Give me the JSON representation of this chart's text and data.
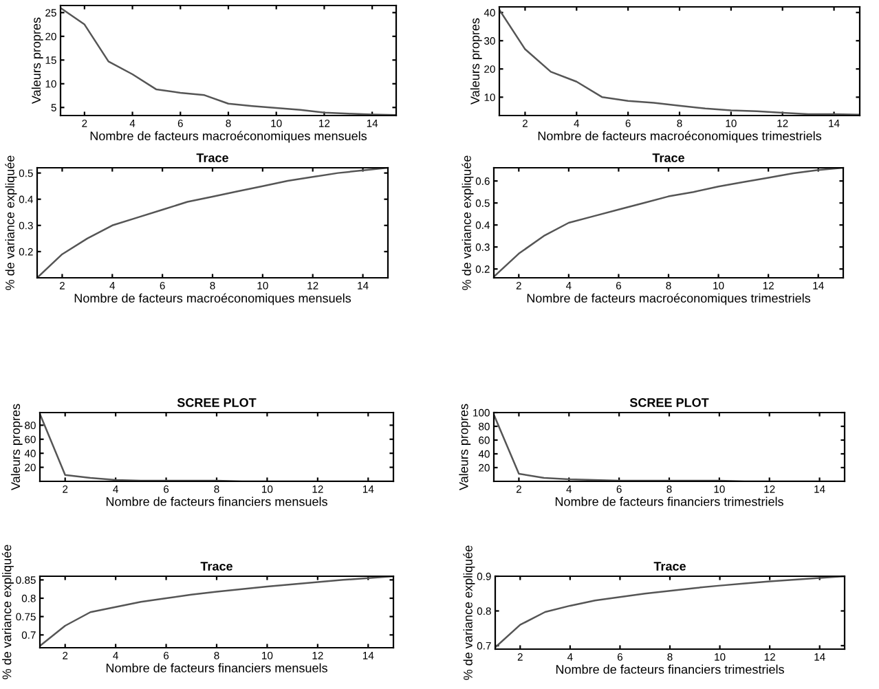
{
  "chart_data": [
    {
      "type": "line",
      "xlabel": "Nombre de facteurs macroéconomiques mensuels",
      "ylabel": "Valeurs propres",
      "x": [
        1,
        2,
        3,
        4,
        5,
        6,
        7,
        8,
        9,
        10,
        11,
        12,
        13,
        14,
        15
      ],
      "series": [
        {
          "color": "#555555",
          "values": [
            26,
            22.5,
            14.7,
            12,
            8.8,
            8.1,
            7.6,
            5.8,
            5.3,
            4.9,
            4.5,
            3.9,
            3.7,
            3.5,
            3.4
          ]
        }
      ],
      "xlim": [
        1,
        15
      ],
      "xticks": [
        2,
        4,
        6,
        8,
        10,
        12,
        14
      ],
      "ylim": [
        3.3,
        26.5
      ],
      "yticks": [
        5,
        10,
        15,
        20,
        25
      ]
    },
    {
      "type": "line",
      "xlabel": "Nombre de facteurs macroéconomiques trimestriels",
      "ylabel": "Valeurs propres",
      "x": [
        1,
        2,
        3,
        4,
        5,
        6,
        7,
        8,
        9,
        10,
        11,
        12,
        13,
        14,
        15
      ],
      "series": [
        {
          "color": "#555555",
          "values": [
            41,
            27,
            19,
            15.5,
            10,
            8.7,
            8,
            7,
            6,
            5.3,
            5,
            4.5,
            4,
            4,
            3.8
          ]
        }
      ],
      "xlim": [
        1,
        15
      ],
      "xticks": [
        2,
        4,
        6,
        8,
        10,
        12,
        14
      ],
      "ylim": [
        3.5,
        42
      ],
      "yticks": [
        10,
        20,
        30,
        40
      ]
    },
    {
      "type": "line",
      "title": "Trace",
      "xlabel": "Nombre de facteurs macroéconomiques mensuels",
      "ylabel": "% de variance expliquée",
      "x": [
        1,
        2,
        3,
        4,
        5,
        6,
        7,
        8,
        9,
        10,
        11,
        12,
        13,
        14,
        15
      ],
      "series": [
        {
          "color": "#555555",
          "values": [
            0.1,
            0.19,
            0.25,
            0.3,
            0.33,
            0.36,
            0.39,
            0.41,
            0.43,
            0.45,
            0.47,
            0.485,
            0.5,
            0.51,
            0.52
          ]
        }
      ],
      "xlim": [
        1,
        15
      ],
      "xticks": [
        2,
        4,
        6,
        8,
        10,
        12,
        14
      ],
      "ylim": [
        0.1,
        0.52
      ],
      "yticks": [
        0.2,
        0.3,
        0.4,
        0.5
      ]
    },
    {
      "type": "line",
      "title": "Trace",
      "xlabel": "Nombre de facteurs macroéconomiques trimestriels",
      "ylabel": "% de variance expliquée",
      "x": [
        1,
        2,
        3,
        4,
        5,
        6,
        7,
        8,
        9,
        10,
        11,
        12,
        13,
        14,
        15
      ],
      "series": [
        {
          "color": "#555555",
          "values": [
            0.165,
            0.27,
            0.35,
            0.41,
            0.44,
            0.47,
            0.5,
            0.53,
            0.55,
            0.575,
            0.595,
            0.615,
            0.635,
            0.65,
            0.66
          ]
        }
      ],
      "xlim": [
        1,
        15
      ],
      "xticks": [
        2,
        4,
        6,
        8,
        10,
        12,
        14
      ],
      "ylim": [
        0.16,
        0.66
      ],
      "yticks": [
        0.2,
        0.3,
        0.4,
        0.5,
        0.6
      ]
    },
    {
      "type": "line",
      "title": "SCREE PLOT",
      "xlabel": "Nombre de facteurs financiers mensuels",
      "ylabel": "Valeurs propres",
      "x": [
        1,
        2,
        3,
        4,
        5,
        6,
        7,
        8,
        9,
        10,
        11,
        12,
        13,
        14,
        15
      ],
      "series": [
        {
          "color": "#555555",
          "values": [
            96,
            9,
            5,
            2,
            1,
            1,
            1,
            1,
            0,
            0,
            0,
            0,
            0,
            0,
            0
          ]
        }
      ],
      "xlim": [
        1,
        15
      ],
      "xticks": [
        2,
        4,
        6,
        8,
        10,
        12,
        14
      ],
      "ylim": [
        0,
        98
      ],
      "yticks": [
        20,
        40,
        60,
        80
      ]
    },
    {
      "type": "line",
      "title": "SCREE PLOT",
      "xlabel": "Nombre de facteurs financiers trimestriels",
      "ylabel": "Valeurs propres",
      "x": [
        1,
        2,
        3,
        4,
        5,
        6,
        7,
        8,
        9,
        10,
        11,
        12,
        13,
        14,
        15
      ],
      "series": [
        {
          "color": "#555555",
          "values": [
            97,
            11,
            5,
            3,
            2,
            1,
            1,
            1,
            1,
            1,
            0,
            0,
            0,
            0,
            0
          ]
        }
      ],
      "xlim": [
        1,
        15
      ],
      "xticks": [
        2,
        4,
        6,
        8,
        10,
        12,
        14
      ],
      "ylim": [
        0,
        100
      ],
      "yticks": [
        20,
        40,
        60,
        80,
        100
      ]
    },
    {
      "type": "line",
      "title": "Trace",
      "xlabel": "Nombre de facteurs financiers mensuels",
      "ylabel": "% de variance expliquée",
      "x": [
        1,
        2,
        3,
        4,
        5,
        6,
        7,
        8,
        9,
        10,
        11,
        12,
        13,
        14,
        15
      ],
      "series": [
        {
          "color": "#555555",
          "values": [
            0.67,
            0.725,
            0.762,
            0.776,
            0.79,
            0.8,
            0.81,
            0.818,
            0.825,
            0.832,
            0.838,
            0.844,
            0.85,
            0.855,
            0.86
          ]
        }
      ],
      "xlim": [
        1,
        15
      ],
      "xticks": [
        2,
        4,
        6,
        8,
        10,
        12,
        14
      ],
      "ylim": [
        0.665,
        0.86
      ],
      "yticks": [
        0.7,
        0.75,
        0.8,
        0.85
      ]
    },
    {
      "type": "line",
      "title": "Trace",
      "xlabel": "Nombre de facteurs financiers trimestriels",
      "ylabel": "% de variance expliquée",
      "x": [
        1,
        2,
        3,
        4,
        5,
        6,
        7,
        8,
        9,
        10,
        11,
        12,
        13,
        14,
        15
      ],
      "series": [
        {
          "color": "#555555",
          "values": [
            0.695,
            0.76,
            0.797,
            0.815,
            0.83,
            0.84,
            0.85,
            0.858,
            0.866,
            0.873,
            0.879,
            0.885,
            0.89,
            0.895,
            0.9
          ]
        }
      ],
      "xlim": [
        1,
        15
      ],
      "xticks": [
        2,
        4,
        6,
        8,
        10,
        12,
        14
      ],
      "ylim": [
        0.69,
        0.9
      ],
      "yticks": [
        0.7,
        0.8,
        0.9
      ]
    }
  ]
}
